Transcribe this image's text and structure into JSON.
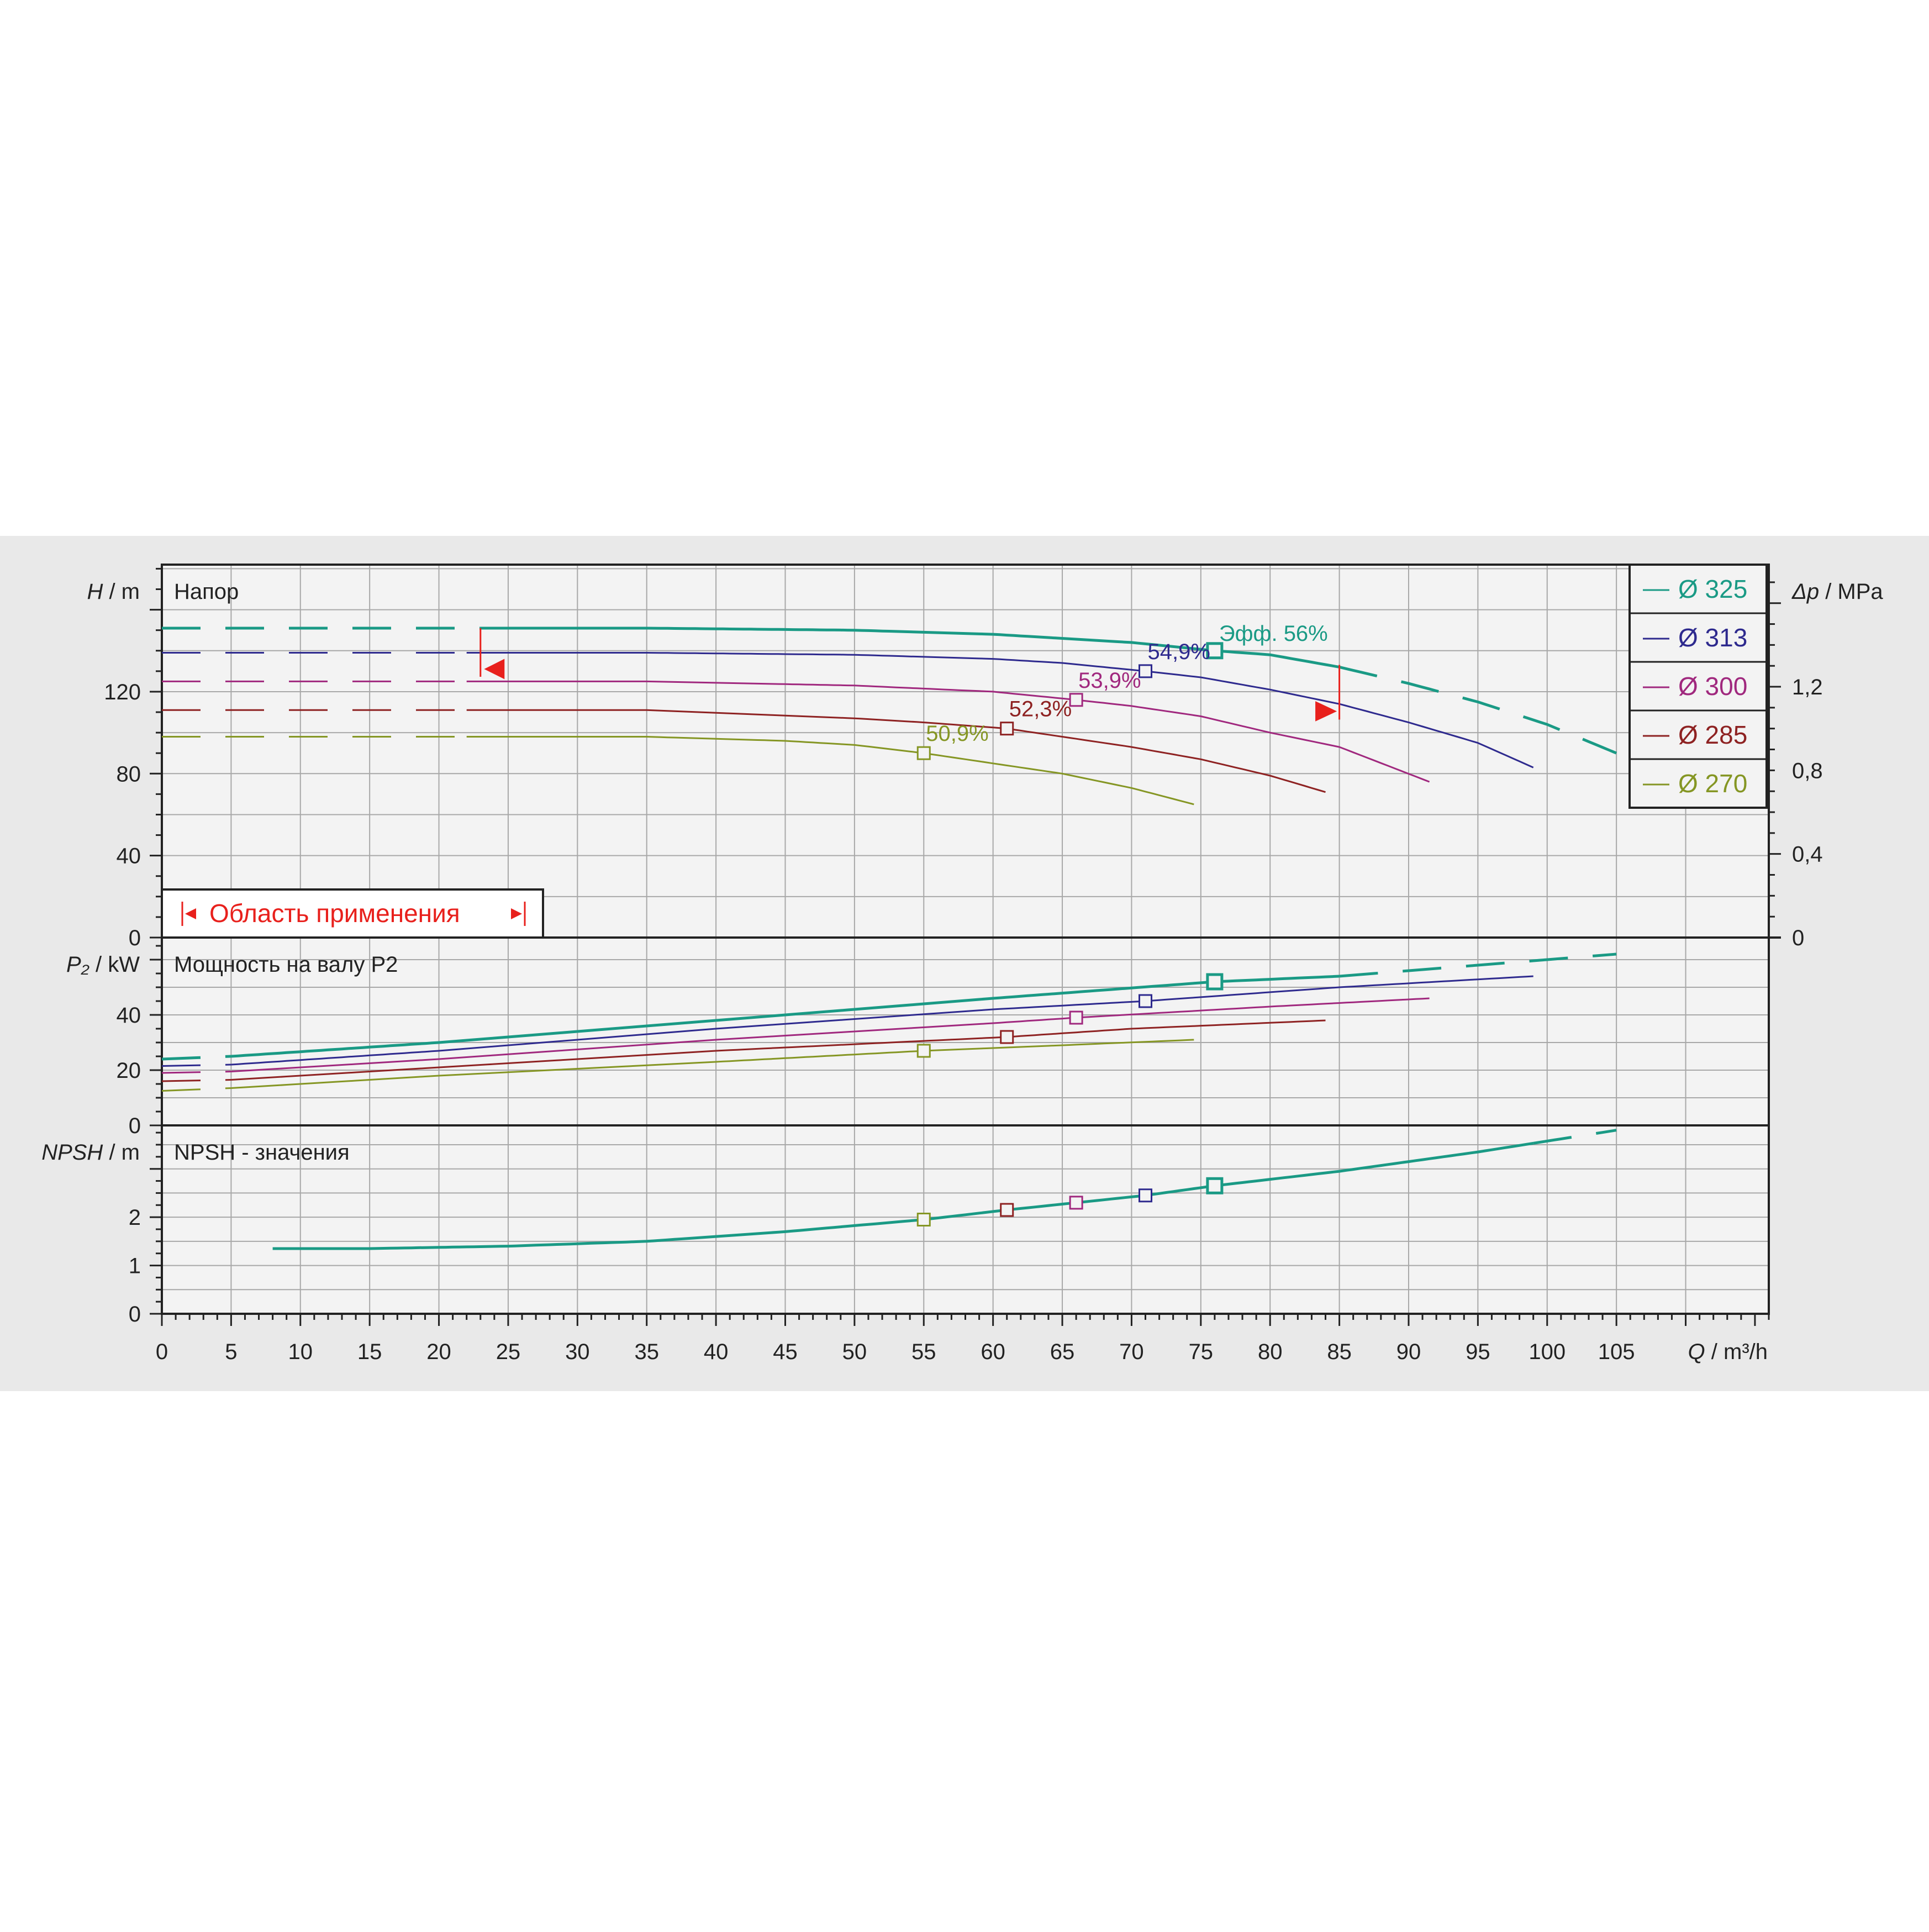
{
  "chart_data": {
    "type": "line",
    "x_label": "Q",
    "x_unit": "m³/h",
    "x_range": [
      0,
      116
    ],
    "x_ticks": [
      0,
      5,
      10,
      15,
      20,
      25,
      30,
      35,
      40,
      45,
      50,
      55,
      60,
      65,
      70,
      75,
      80,
      85,
      90,
      95,
      100,
      105
    ],
    "grid": true,
    "legend_position": "top-right",
    "colors": {
      "d325": "#1a9a85",
      "d313": "#2e2a8e",
      "d300": "#a0287e",
      "d285": "#8e2222",
      "d270": "#859624",
      "range": "#e8201c"
    },
    "legend": [
      "Ø 325",
      "Ø 313",
      "Ø 300",
      "Ø 285",
      "Ø 270"
    ],
    "application_range": {
      "label": "Область применения",
      "q_min": 23,
      "q_max": 85
    },
    "panels": {
      "head": {
        "title": "Напор",
        "y_label": "H",
        "y_unit": "m",
        "y_range": [
          0,
          182
        ],
        "y_ticks": [
          0,
          40,
          80,
          120
        ],
        "y2_label": "Δp",
        "y2_unit": "MPa",
        "y2_ticks": [
          "0",
          "0,4",
          "0,8",
          "1,2"
        ],
        "y2_values": [
          0,
          0.4,
          0.8,
          1.2
        ],
        "eff_prefix": "Эфф.",
        "series": [
          {
            "name": "Ø 325",
            "dia": "d325",
            "width": 5,
            "x": [
              0,
              23,
              35,
              50,
              60,
              70,
              76,
              80,
              85,
              90,
              95,
              100,
              105
            ],
            "y": [
              151,
              151,
              151,
              150,
              148,
              144,
              140,
              138,
              132,
              124,
              115,
              104,
              90
            ],
            "solid_range": [
              23,
              85
            ],
            "eff": "56%",
            "eff_q": 76
          },
          {
            "name": "Ø 313",
            "dia": "d313",
            "width": 3,
            "x": [
              0,
              22,
              35,
              50,
              60,
              65,
              71,
              75,
              80,
              85,
              90,
              95,
              99
            ],
            "y": [
              139,
              139,
              139,
              138,
              136,
              134,
              130,
              127,
              121,
              114,
              105,
              95,
              83
            ],
            "solid_range": [
              22,
              99
            ],
            "eff": "54,9%",
            "eff_q": 71
          },
          {
            "name": "Ø 300",
            "dia": "d300",
            "width": 3,
            "x": [
              0,
              22,
              35,
              50,
              60,
              66,
              70,
              75,
              80,
              85,
              91.5
            ],
            "y": [
              125,
              125,
              125,
              123,
              120,
              116,
              113,
              108,
              100,
              93,
              76
            ],
            "solid_range": [
              22,
              91.5
            ],
            "eff": "53,9%",
            "eff_q": 66
          },
          {
            "name": "Ø 285",
            "dia": "d285",
            "width": 3,
            "x": [
              0,
              22,
              35,
              50,
              55,
              61,
              65,
              70,
              75,
              80,
              84
            ],
            "y": [
              111,
              111,
              111,
              107,
              105,
              102,
              98,
              93,
              87,
              79,
              71
            ],
            "solid_range": [
              22,
              84
            ],
            "eff": "52,3%",
            "eff_q": 61
          },
          {
            "name": "Ø 270",
            "dia": "d270",
            "width": 3,
            "x": [
              0,
              22,
              35,
              45,
              50,
              55,
              60,
              65,
              70,
              74.5
            ],
            "y": [
              98,
              98,
              98,
              96,
              94,
              90,
              85,
              80,
              73,
              65
            ],
            "solid_range": [
              22,
              74.5
            ],
            "eff": "50,9%",
            "eff_q": 55
          }
        ]
      },
      "power": {
        "title": "Мощность на валу P2",
        "y_label": "P₂",
        "y_unit": "kW",
        "y_range": [
          0,
          68
        ],
        "y_ticks": [
          0,
          20,
          40
        ],
        "series": [
          {
            "name": "Ø 325",
            "dia": "d325",
            "width": 5,
            "x": [
              0,
              5,
              20,
              40,
              60,
              76,
              85,
              95,
              105
            ],
            "y": [
              24,
              25,
              30,
              38,
              46,
              52,
              54,
              58,
              62
            ],
            "solid_range": [
              5,
              85
            ],
            "marker_q": 76
          },
          {
            "name": "Ø 313",
            "dia": "d313",
            "width": 3,
            "x": [
              0,
              5,
              20,
              40,
              60,
              71,
              85,
              99
            ],
            "y": [
              21.5,
              22,
              27,
              35,
              42,
              45,
              50,
              54
            ],
            "solid_range": [
              5,
              99
            ],
            "marker_q": 71
          },
          {
            "name": "Ø 300",
            "dia": "d300",
            "width": 3,
            "x": [
              0,
              5,
              20,
              40,
              60,
              66,
              80,
              91.5
            ],
            "y": [
              19,
              19.5,
              24,
              31,
              37,
              39,
              43,
              46
            ],
            "solid_range": [
              5,
              91.5
            ],
            "marker_q": 66
          },
          {
            "name": "Ø 285",
            "dia": "d285",
            "width": 3,
            "x": [
              0,
              5,
              20,
              40,
              61,
              70,
              84
            ],
            "y": [
              16,
              16.5,
              21,
              27,
              32,
              35,
              38
            ],
            "solid_range": [
              5,
              84
            ],
            "marker_q": 61
          },
          {
            "name": "Ø 270",
            "dia": "d270",
            "width": 3,
            "x": [
              0,
              5,
              20,
              40,
              55,
              65,
              74.5
            ],
            "y": [
              12.5,
              13.5,
              18,
              23,
              27,
              29,
              31
            ],
            "solid_range": [
              5,
              74.5
            ],
            "marker_q": 55
          }
        ]
      },
      "npsh": {
        "title": "NPSH - значения",
        "y_label": "NPSH",
        "y_unit": "m",
        "y_range": [
          0,
          3.9
        ],
        "y_ticks": [
          0,
          1,
          2
        ],
        "series": [
          {
            "name": "NPSH",
            "dia": "d325",
            "width": 5,
            "x": [
              8,
              15,
              25,
              35,
              45,
              55,
              61,
              66,
              71,
              76,
              85,
              95,
              105
            ],
            "y": [
              1.35,
              1.35,
              1.4,
              1.5,
              1.7,
              1.95,
              2.15,
              2.3,
              2.45,
              2.65,
              2.95,
              3.35,
              3.8
            ],
            "solid_range": [
              8,
              99
            ]
          }
        ],
        "markers": [
          {
            "dia": "d270",
            "q": 55,
            "v": 1.95
          },
          {
            "dia": "d285",
            "q": 61,
            "v": 2.15
          },
          {
            "dia": "d300",
            "q": 66,
            "v": 2.3
          },
          {
            "dia": "d313",
            "q": 71,
            "v": 2.45
          },
          {
            "dia": "d325",
            "q": 76,
            "v": 2.65
          }
        ]
      }
    }
  }
}
